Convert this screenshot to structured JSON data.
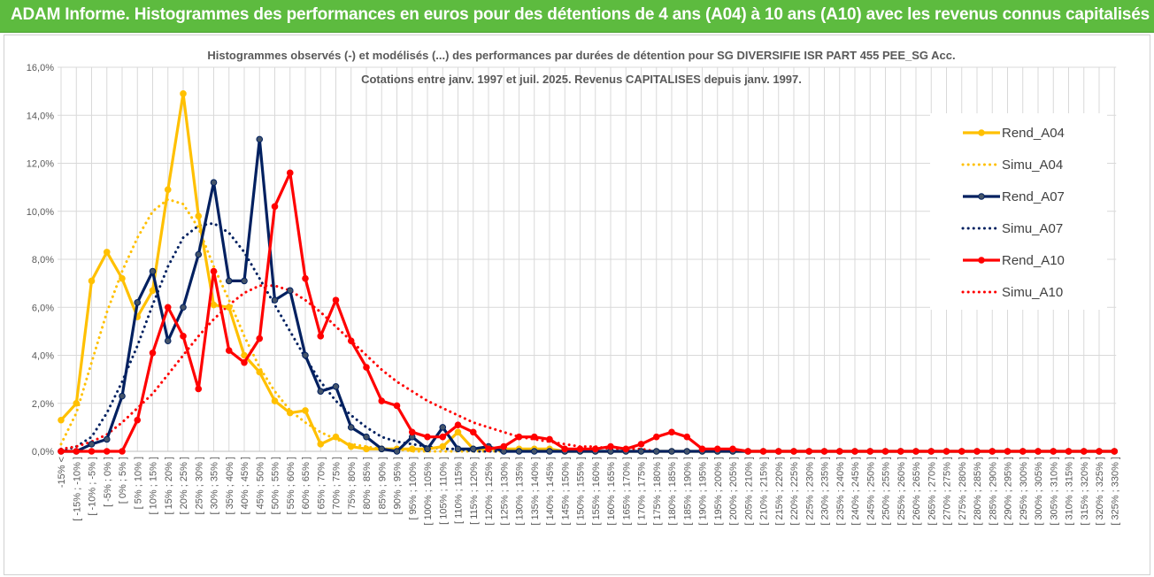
{
  "header": {
    "title": "ADAM Informe. Histogrammes des performances en euros pour des détentions de 4 ans (A04) à 10 ans (A10) avec les revenus connus capitalisés",
    "background": "#5dbb3f"
  },
  "chart_data": {
    "type": "line",
    "title": "Histogrammes observés (-) et modélisés (...) des performances par durées de détention pour SG DIVERSIFIE ISR PART 455 PEE_SG Acc.",
    "subtitle": "Cotations entre janv. 1997 et juil. 2025. Revenus CAPITALISES depuis janv. 1997.",
    "ylim": [
      0,
      0.16
    ],
    "yticks": [
      "0,0%",
      "2,0%",
      "4,0%",
      "6,0%",
      "8,0%",
      "10,0%",
      "12,0%",
      "14,0%",
      "16,0%"
    ],
    "grid": true,
    "legend_position": "right",
    "categories": [
      "-15% <",
      "[ -15% ; -10% ]",
      "[ -10% ; -5% ]",
      "[ -5% ; 0% ]",
      "[ 0% ; 5% ]",
      "[ 5% ; 10% ]",
      "[ 10% ; 15% ]",
      "[ 15% ; 20% ]",
      "[ 20% ; 25% ]",
      "[ 25% ; 30% ]",
      "[ 30% ; 35% ]",
      "[ 35% ; 40% ]",
      "[ 40% ; 45% ]",
      "[ 45% ; 50% ]",
      "[ 50% ; 55% ]",
      "[ 55% ; 60% ]",
      "[ 60% ; 65% ]",
      "[ 65% ; 70% ]",
      "[ 70% ; 75% ]",
      "[ 75% ; 80% ]",
      "[ 80% ; 85% ]",
      "[ 85% ; 90% ]",
      "[ 90% ; 95% ]",
      "[ 95% ; 100% ]",
      "[ 100% ; 105% ]",
      "[ 105% ; 110% ]",
      "[ 110% ; 115% ]",
      "[ 115% ; 120% ]",
      "[ 120% ; 125% ]",
      "[ 125% ; 130% ]",
      "[ 130% ; 135% ]",
      "[ 135% ; 140% ]",
      "[ 140% ; 145% ]",
      "[ 145% ; 150% ]",
      "[ 150% ; 155% ]",
      "[ 155% ; 160% ]",
      "[ 160% ; 165% ]",
      "[ 165% ; 170% ]",
      "[ 170% ; 175% ]",
      "[ 175% ; 180% ]",
      "[ 180% ; 185% ]",
      "[ 185% ; 190% ]",
      "[ 190% ; 195% ]",
      "[ 195% ; 200% ]",
      "[ 200% ; 205% ]",
      "[ 205% ; 210% ]",
      "[ 210% ; 215% ]",
      "[ 215% ; 220% ]",
      "[ 220% ; 225% ]",
      "[ 225% ; 230% ]",
      "[ 230% ; 235% ]",
      "[ 235% ; 240% ]",
      "[ 240% ; 245% ]",
      "[ 245% ; 250% ]",
      "[ 250% ; 255% ]",
      "[ 255% ; 260% ]",
      "[ 260% ; 265% ]",
      "[ 265% ; 270% ]",
      "[ 270% ; 275% ]",
      "[ 275% ; 280% ]",
      "[ 280% ; 285% ]",
      "[ 285% ; 290% ]",
      "[ 290% ; 295% ]",
      "[ 295% ; 300% ]",
      "[ 300% ; 305% ]",
      "[ 305% ; 310% ]",
      "[ 310% ; 315% ]",
      "[ 315% ; 320% ]",
      "[ 320% ; 325% ]",
      "[ 325% ; 330% ]"
    ],
    "series": [
      {
        "name": "Rend_A04",
        "style": "solid",
        "marker": true,
        "color": "#ffc000",
        "values": [
          0.013,
          0.02,
          0.071,
          0.083,
          0.072,
          0.056,
          0.067,
          0.109,
          0.149,
          0.098,
          0.061,
          0.06,
          0.04,
          0.033,
          0.021,
          0.016,
          0.017,
          0.003,
          0.006,
          0.002,
          0.001,
          0.001,
          0.001,
          0.001,
          0.001,
          0.002,
          0.008,
          0.001,
          0.001,
          0.001,
          0.001,
          0.001,
          0.001,
          0,
          0,
          0,
          0,
          0,
          0,
          0,
          0,
          0,
          0,
          0,
          0,
          0,
          0,
          0,
          0,
          0,
          0,
          0,
          0,
          0,
          0,
          0,
          0,
          0,
          0,
          0,
          0,
          0,
          0,
          0,
          0,
          0,
          0,
          0,
          0,
          0
        ]
      },
      {
        "name": "Simu_A04",
        "style": "dotted",
        "marker": false,
        "color": "#ffc000",
        "values": [
          0.003,
          0.016,
          0.037,
          0.058,
          0.075,
          0.089,
          0.1,
          0.105,
          0.103,
          0.093,
          0.077,
          0.063,
          0.048,
          0.035,
          0.025,
          0.017,
          0.012,
          0.008,
          0.005,
          0.003,
          0.002,
          0.001,
          0.001,
          0,
          0,
          0,
          0,
          0,
          0,
          0,
          0,
          0,
          0,
          0,
          0,
          0,
          0,
          0,
          0,
          0,
          0,
          0,
          0,
          0,
          0,
          0,
          0,
          0,
          0,
          0,
          0,
          0,
          0,
          0,
          0,
          0,
          0,
          0,
          0,
          0,
          0,
          0,
          0,
          0,
          0,
          0,
          0,
          0,
          0,
          0
        ]
      },
      {
        "name": "Rend_A07",
        "style": "solid",
        "marker": true,
        "color": "#002060",
        "values": [
          0,
          0,
          0.003,
          0.005,
          0.023,
          0.062,
          0.075,
          0.046,
          0.06,
          0.082,
          0.112,
          0.071,
          0.071,
          0.13,
          0.063,
          0.067,
          0.04,
          0.025,
          0.027,
          0.01,
          0.006,
          0.001,
          0,
          0.006,
          0.001,
          0.01,
          0.001,
          0.001,
          0.002,
          0,
          0,
          0,
          0,
          0,
          0,
          0,
          0,
          0,
          0,
          0,
          0,
          0,
          0,
          0,
          0,
          0,
          0,
          0,
          0,
          0,
          0,
          0,
          0,
          0,
          0,
          0,
          0,
          0,
          0,
          0,
          0,
          0,
          0,
          0,
          0,
          0,
          0,
          0,
          0,
          0
        ]
      },
      {
        "name": "Simu_A07",
        "style": "dotted",
        "marker": false,
        "color": "#002060",
        "values": [
          0,
          0.002,
          0.006,
          0.016,
          0.029,
          0.044,
          0.061,
          0.077,
          0.089,
          0.094,
          0.095,
          0.091,
          0.083,
          0.072,
          0.061,
          0.05,
          0.039,
          0.029,
          0.021,
          0.015,
          0.01,
          0.006,
          0.004,
          0.003,
          0.002,
          0.001,
          0.001,
          0,
          0,
          0,
          0,
          0,
          0,
          0,
          0,
          0,
          0,
          0,
          0,
          0,
          0,
          0,
          0,
          0,
          0,
          0,
          0,
          0,
          0,
          0,
          0,
          0,
          0,
          0,
          0,
          0,
          0,
          0,
          0,
          0,
          0,
          0,
          0,
          0,
          0,
          0,
          0,
          0,
          0,
          0
        ]
      },
      {
        "name": "Rend_A10",
        "style": "solid",
        "marker": true,
        "color": "#ff0000",
        "values": [
          0,
          0,
          0,
          0,
          0,
          0.013,
          0.041,
          0.06,
          0.048,
          0.026,
          0.075,
          0.042,
          0.037,
          0.047,
          0.102,
          0.116,
          0.072,
          0.048,
          0.063,
          0.046,
          0.035,
          0.021,
          0.019,
          0.008,
          0.006,
          0.006,
          0.011,
          0.008,
          0.001,
          0.002,
          0.006,
          0.006,
          0.005,
          0.001,
          0.001,
          0.001,
          0.002,
          0.001,
          0.003,
          0.006,
          0.008,
          0.006,
          0.001,
          0.001,
          0.001,
          0,
          0,
          0,
          0,
          0,
          0,
          0,
          0,
          0,
          0,
          0,
          0,
          0,
          0,
          0,
          0,
          0,
          0,
          0,
          0,
          0,
          0,
          0,
          0,
          0
        ]
      },
      {
        "name": "Simu_A10",
        "style": "dotted",
        "marker": false,
        "color": "#ff0000",
        "values": [
          0.001,
          0.002,
          0.004,
          0.007,
          0.012,
          0.018,
          0.024,
          0.032,
          0.04,
          0.048,
          0.055,
          0.061,
          0.066,
          0.069,
          0.069,
          0.067,
          0.063,
          0.058,
          0.052,
          0.046,
          0.04,
          0.034,
          0.029,
          0.025,
          0.021,
          0.018,
          0.015,
          0.012,
          0.01,
          0.008,
          0.006,
          0.005,
          0.004,
          0.003,
          0.002,
          0.002,
          0.001,
          0.001,
          0.001,
          0,
          0,
          0,
          0,
          0,
          0,
          0,
          0,
          0,
          0,
          0,
          0,
          0,
          0,
          0,
          0,
          0,
          0,
          0,
          0,
          0,
          0,
          0,
          0,
          0,
          0,
          0,
          0,
          0,
          0,
          0
        ]
      }
    ]
  }
}
